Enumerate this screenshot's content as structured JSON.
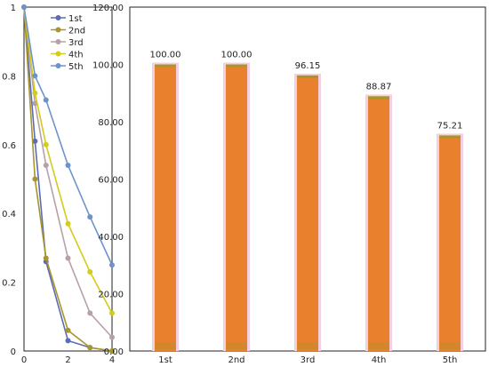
{
  "chart_data": [
    {
      "type": "line",
      "x": [
        0,
        0.5,
        1,
        2,
        3,
        4
      ],
      "xticks": [
        0,
        2,
        4
      ],
      "xlim": [
        0,
        4
      ],
      "ylim": [
        0,
        1
      ],
      "yticks": [
        "0",
        "0.2",
        "0.4",
        "0.6",
        "0.8",
        "1"
      ],
      "legend_position": "top-right",
      "series": [
        {
          "name": "1st",
          "color": "#5b6cb5",
          "values": [
            1.0,
            0.61,
            0.26,
            0.03,
            0.01,
            0.0
          ]
        },
        {
          "name": "2nd",
          "color": "#a8962a",
          "values": [
            1.0,
            0.5,
            0.27,
            0.06,
            0.01,
            0.0
          ]
        },
        {
          "name": "3rd",
          "color": "#b8a0a8",
          "values": [
            1.0,
            0.72,
            0.54,
            0.27,
            0.11,
            0.04
          ]
        },
        {
          "name": "4th",
          "color": "#d4cb1a",
          "values": [
            1.0,
            0.75,
            0.6,
            0.37,
            0.23,
            0.11
          ]
        },
        {
          "name": "5th",
          "color": "#6e93cc",
          "values": [
            1.0,
            0.8,
            0.73,
            0.54,
            0.39,
            0.25
          ]
        }
      ]
    },
    {
      "type": "bar",
      "categories": [
        "1st",
        "2nd",
        "3rd",
        "4th",
        "5th"
      ],
      "values": [
        100.0,
        100.0,
        96.15,
        88.87,
        75.21
      ],
      "data_labels": [
        "100.00",
        "100.00",
        "96.15",
        "88.87",
        "75.21"
      ],
      "ylim": [
        0,
        120
      ],
      "yticks": [
        "0.00",
        "20.00",
        "40.00",
        "60.00",
        "80.00",
        "100.00",
        "120.00"
      ],
      "bar_color": "#e8802e",
      "bar_top_color": "#a8962a",
      "bar_shadow_color": "#f3cfe0"
    }
  ]
}
